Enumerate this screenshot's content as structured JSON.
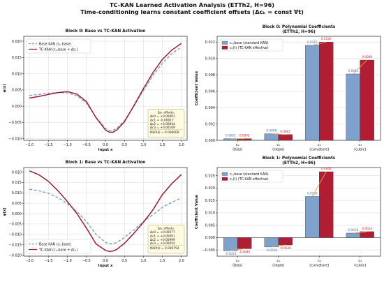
{
  "figure": {
    "title": "TC-KAN Learned Activation Analysis (ETTh2, H=96)",
    "subtitle": "Time-conditioning learns constant coefficient offsets (Δcₖ = const ∀t)"
  },
  "colors": {
    "base": "#6f98c8",
    "tc": "#9e1b32",
    "bar_base": "#7fa2cc",
    "bar_tc": "#b11d33",
    "arrow": "#e8a24c",
    "box_bg": "#fffbe0"
  },
  "chart_data": [
    {
      "type": "line",
      "title": "Block 0: Base vs TC-KAN Activation",
      "xlabel": "Input x",
      "ylabel": "φ(x)",
      "xlim": [
        -2.15,
        2.15
      ],
      "ylim": [
        -0.0105,
        0.0215
      ],
      "xticks": [
        -2.0,
        -1.5,
        -1.0,
        -0.5,
        0.0,
        0.5,
        1.0,
        1.5,
        2.0
      ],
      "xtick_labels": [
        "−2.0",
        "−1.5",
        "−1.0",
        "−0.5",
        "0.0",
        "0.5",
        "1.0",
        "1.5",
        "2.0"
      ],
      "yticks": [
        -0.01,
        -0.005,
        0.0,
        0.005,
        0.01,
        0.015,
        0.02
      ],
      "ytick_labels": [
        "−0.010",
        "−0.005",
        "0.000",
        "0.005",
        "0.010",
        "0.015",
        "0.020"
      ],
      "grid": true,
      "legend_position": "top-left",
      "series": [
        {
          "name": "Base KAN (cₖ,base)",
          "style": "dashed",
          "x": [
            -2.0,
            -1.75,
            -1.5,
            -1.25,
            -1.0,
            -0.75,
            -0.5,
            -0.25,
            0.0,
            0.1,
            0.2,
            0.3,
            0.5,
            0.75,
            1.0,
            1.25,
            1.5,
            1.75,
            2.0
          ],
          "y": [
            0.0033,
            0.0036,
            0.004,
            0.0042,
            0.0041,
            0.0032,
            0.001,
            -0.0034,
            -0.0068,
            -0.0074,
            -0.0074,
            -0.0068,
            -0.0045,
            0.0,
            0.0048,
            0.0094,
            0.0132,
            0.0162,
            0.0182
          ]
        },
        {
          "name": "TC-KAN (cₖ,base + Δcₖ)",
          "style": "solid",
          "x": [
            -2.0,
            -1.75,
            -1.5,
            -1.25,
            -1.0,
            -0.75,
            -0.5,
            -0.25,
            0.0,
            0.1,
            0.2,
            0.3,
            0.5,
            0.75,
            1.0,
            1.25,
            1.5,
            1.75,
            2.0
          ],
          "y": [
            0.0025,
            0.003,
            0.0036,
            0.0042,
            0.0045,
            0.0037,
            0.0014,
            -0.0035,
            -0.0073,
            -0.008,
            -0.008,
            -0.0073,
            -0.0048,
            0.0002,
            0.0054,
            0.0103,
            0.0144,
            0.0173,
            0.0193
          ]
        }
      ],
      "annotation": {
        "lines": [
          "Δcₖ offsets:",
          "Δc0 = +0.00003",
          "Δc1 = -0.00017",
          "Δc2 = +0.00044",
          "Δc3 = +0.00169"
        ],
        "footer": "MLP(x̃) = 0.000000"
      }
    },
    {
      "type": "bar",
      "title": "Block 0: Polynomial Coefficients",
      "subtitle": "(ETTh2, H=96)",
      "xlabel": "",
      "ylabel": "Coefficient Value",
      "ylim": [
        0,
        0.0127
      ],
      "yticks": [
        0.0,
        0.002,
        0.004,
        0.006,
        0.008,
        0.01,
        0.012
      ],
      "ytick_labels": [
        "0.000",
        "0.002",
        "0.004",
        "0.006",
        "0.008",
        "0.010",
        "0.012"
      ],
      "grid": true,
      "legend_position": "top-left",
      "categories": [
        "c₀",
        "c₁",
        "c₂",
        "c₃"
      ],
      "category_sublabels": [
        "(bias)",
        "(slope)",
        "(curvature)",
        "(cubic)"
      ],
      "series": [
        {
          "name": "cₖ,base (standard KAN)",
          "values": [
            0.0002,
            0.0008,
            0.0116,
            0.0081
          ],
          "labels": [
            "0.0002",
            "0.0008",
            "0.0116",
            "0.0081"
          ]
        },
        {
          "name": "cₖ(t) (TC-KAN effective)",
          "values": [
            0.0002,
            0.0007,
            0.012,
            0.0098
          ],
          "labels": [
            "0.0002",
            "0.0007",
            "0.0120",
            "0.0098"
          ]
        }
      ]
    },
    {
      "type": "line",
      "title": "Block 1: Base vs TC-KAN Activation",
      "xlabel": "Input x",
      "ylabel": "φ(x)",
      "xlim": [
        -2.15,
        2.15
      ],
      "ylim": [
        -0.0205,
        0.0222
      ],
      "xticks": [
        -2.0,
        -1.5,
        -1.0,
        -0.5,
        0.0,
        0.5,
        1.0,
        1.5,
        2.0
      ],
      "xtick_labels": [
        "−2.0",
        "−1.5",
        "−1.0",
        "−0.5",
        "0.0",
        "0.5",
        "1.0",
        "1.5",
        "2.0"
      ],
      "yticks": [
        -0.02,
        -0.015,
        -0.01,
        -0.005,
        0.0,
        0.005,
        0.01,
        0.015,
        0.02
      ],
      "ytick_labels": [
        "−0.020",
        "−0.015",
        "−0.010",
        "−0.005",
        "0.000",
        "0.005",
        "0.010",
        "0.015",
        "0.020"
      ],
      "grid": true,
      "legend_position": "bottom-left",
      "series": [
        {
          "name": "Base KAN (cₖ,base)",
          "style": "dashed",
          "x": [
            -2.0,
            -1.75,
            -1.5,
            -1.25,
            -1.0,
            -0.75,
            -0.5,
            -0.25,
            0.0,
            0.1,
            0.2,
            0.3,
            0.5,
            0.75,
            1.0,
            1.25,
            1.5,
            1.75,
            2.0
          ],
          "y": [
            0.0117,
            0.011,
            0.0098,
            0.0077,
            0.0048,
            0.001,
            -0.0038,
            -0.01,
            -0.0138,
            -0.0145,
            -0.0145,
            -0.0139,
            -0.0115,
            -0.0078,
            -0.0038,
            -0.0005,
            0.003,
            0.0055,
            0.0075
          ]
        },
        {
          "name": "TC-KAN (cₖ,base + Δcₖ)",
          "style": "solid",
          "x": [
            -2.0,
            -1.75,
            -1.5,
            -1.25,
            -1.0,
            -0.75,
            -0.5,
            -0.25,
            0.0,
            0.1,
            0.2,
            0.3,
            0.5,
            0.75,
            1.0,
            1.25,
            1.5,
            1.75,
            2.0
          ],
          "y": [
            0.0206,
            0.0187,
            0.0155,
            0.011,
            0.0058,
            0.0,
            -0.007,
            -0.0145,
            -0.0177,
            -0.0182,
            -0.018,
            -0.0172,
            -0.0143,
            -0.0095,
            -0.0042,
            0.0018,
            0.0092,
            0.0145,
            0.0188
          ]
        }
      ],
      "annotation": {
        "lines": [
          "Δcₖ offsets:",
          "Δc0 = +0.00077",
          "Δc1 = +0.00001",
          "Δc2 = +0.00999",
          "Δc3 = +0.00054"
        ],
        "footer": "MLP(x̃) = 0.000754"
      }
    },
    {
      "type": "bar",
      "title": "Block 1: Polynomial Coefficients",
      "subtitle": "(ETTh2, H=96)",
      "xlabel": "",
      "ylabel": "Coefficient Value",
      "ylim": [
        -0.0075,
        0.0283
      ],
      "yticks": [
        -0.005,
        0.0,
        0.005,
        0.01,
        0.015,
        0.02,
        0.025
      ],
      "ytick_labels": [
        "−0.005",
        "0.000",
        "0.005",
        "0.010",
        "0.015",
        "0.020",
        "0.025"
      ],
      "grid": true,
      "legend_position": "top-left",
      "categories": [
        "c₀",
        "c₁",
        "c₂",
        "c₃"
      ],
      "category_sublabels": [
        "(bias)",
        "(slope)",
        "(curvature)",
        "(cubic)"
      ],
      "series": [
        {
          "name": "cₖ,base (standard KAN)",
          "values": [
            -0.0053,
            -0.0038,
            0.0166,
            0.0018
          ],
          "labels": [
            "-0.0053",
            "-0.0038",
            "0.0166",
            "0.0018"
          ]
        },
        {
          "name": "cₖ(t) (TC-KAN effective)",
          "values": [
            -0.0045,
            -0.003,
            0.0266,
            0.0024
          ],
          "labels": [
            "-0.0045",
            "-0.0030",
            "0.0266",
            "0.0024"
          ]
        }
      ]
    }
  ]
}
